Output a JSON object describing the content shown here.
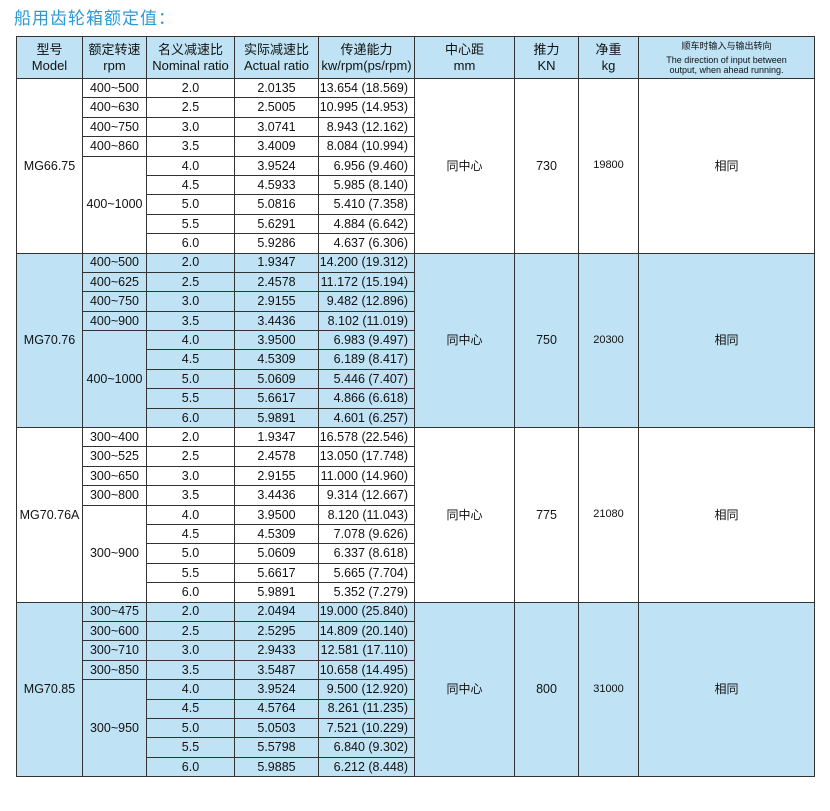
{
  "title": "船用齿轮箱额定值：",
  "colors": {
    "header_bg": "#bfe3f5",
    "alt_row_bg": "#bfe3f5",
    "title": "#2b9ad8",
    "border": "#333333"
  },
  "headers": [
    {
      "zh": "型号",
      "en": "Model"
    },
    {
      "zh": "额定转速",
      "en": "rpm"
    },
    {
      "zh": "名义减速比",
      "en": "Nominal ratio"
    },
    {
      "zh": "实际减速比",
      "en": "Actual ratio"
    },
    {
      "zh": "传递能力",
      "en": "kw/rpm(ps/rpm)"
    },
    {
      "zh": "中心距",
      "en": "mm"
    },
    {
      "zh": "推力",
      "en": "KN"
    },
    {
      "zh": "净重",
      "en": "kg"
    },
    {
      "zh": "顺车时输入与输出转向",
      "en": "The direction of input between output, when ahead running."
    }
  ],
  "groups": [
    {
      "model": "MG66.75",
      "center": "同中心",
      "thrust": "730",
      "weight": "19800",
      "direction": "相同",
      "shaded": false,
      "speeds": [
        "400~500",
        "400~630",
        "400~750",
        "400~860",
        "400~1000"
      ],
      "rows": [
        [
          "2.0",
          "2.0135",
          "13.654 (18.569)"
        ],
        [
          "2.5",
          "2.5005",
          "10.995 (14.953)"
        ],
        [
          "3.0",
          "3.0741",
          "8.943 (12.162)"
        ],
        [
          "3.5",
          "3.4009",
          "8.084 (10.994)"
        ],
        [
          "4.0",
          "3.9524",
          "6.956 (9.460)"
        ],
        [
          "4.5",
          "4.5933",
          "5.985 (8.140)"
        ],
        [
          "5.0",
          "5.0816",
          "5.410 (7.358)"
        ],
        [
          "5.5",
          "5.6291",
          "4.884 (6.642)"
        ],
        [
          "6.0",
          "5.9286",
          "4.637 (6.306)"
        ]
      ]
    },
    {
      "model": "MG70.76",
      "center": "同中心",
      "thrust": "750",
      "weight": "20300",
      "direction": "相同",
      "shaded": true,
      "speeds": [
        "400~500",
        "400~625",
        "400~750",
        "400~900",
        "400~1000"
      ],
      "rows": [
        [
          "2.0",
          "1.9347",
          "14.200 (19.312)"
        ],
        [
          "2.5",
          "2.4578",
          "11.172 (15.194)"
        ],
        [
          "3.0",
          "2.9155",
          "9.482 (12.896)"
        ],
        [
          "3.5",
          "3.4436",
          "8.102 (11.019)"
        ],
        [
          "4.0",
          "3.9500",
          "6.983 (9.497)"
        ],
        [
          "4.5",
          "4.5309",
          "6.189 (8.417)"
        ],
        [
          "5.0",
          "5.0609",
          "5.446 (7.407)"
        ],
        [
          "5.5",
          "5.6617",
          "4.866 (6.618)"
        ],
        [
          "6.0",
          "5.9891",
          "4.601 (6.257)"
        ]
      ]
    },
    {
      "model": "MG70.76A",
      "center": "同中心",
      "thrust": "775",
      "weight": "21080",
      "direction": "相同",
      "shaded": false,
      "speeds": [
        "300~400",
        "300~525",
        "300~650",
        "300~800",
        "300~900"
      ],
      "rows": [
        [
          "2.0",
          "1.9347",
          "16.578 (22.546)"
        ],
        [
          "2.5",
          "2.4578",
          "13.050 (17.748)"
        ],
        [
          "3.0",
          "2.9155",
          "11.000 (14.960)"
        ],
        [
          "3.5",
          "3.4436",
          "9.314 (12.667)"
        ],
        [
          "4.0",
          "3.9500",
          "8.120 (11.043)"
        ],
        [
          "4.5",
          "4.5309",
          "7.078 (9.626)"
        ],
        [
          "5.0",
          "5.0609",
          "6.337 (8.618)"
        ],
        [
          "5.5",
          "5.6617",
          "5.665 (7.704)"
        ],
        [
          "6.0",
          "5.9891",
          "5.352 (7.279)"
        ]
      ]
    },
    {
      "model": "MG70.85",
      "center": "同中心",
      "thrust": "800",
      "weight": "31000",
      "direction": "相同",
      "shaded": true,
      "speeds": [
        "300~475",
        "300~600",
        "300~710",
        "300~850",
        "300~950"
      ],
      "rows": [
        [
          "2.0",
          "2.0494",
          "19.000 (25.840)"
        ],
        [
          "2.5",
          "2.5295",
          "14.809 (20.140)"
        ],
        [
          "3.0",
          "2.9433",
          "12.581 (17.110)"
        ],
        [
          "3.5",
          "3.5487",
          "10.658 (14.495)"
        ],
        [
          "4.0",
          "3.9524",
          "9.500 (12.920)"
        ],
        [
          "4.5",
          "4.5764",
          "8.261 (11.235)"
        ],
        [
          "5.0",
          "5.0503",
          "7.521 (10.229)"
        ],
        [
          "5.5",
          "5.5798",
          "6.840 (9.302)"
        ],
        [
          "6.0",
          "5.9885",
          "6.212 (8.448)"
        ]
      ]
    }
  ]
}
